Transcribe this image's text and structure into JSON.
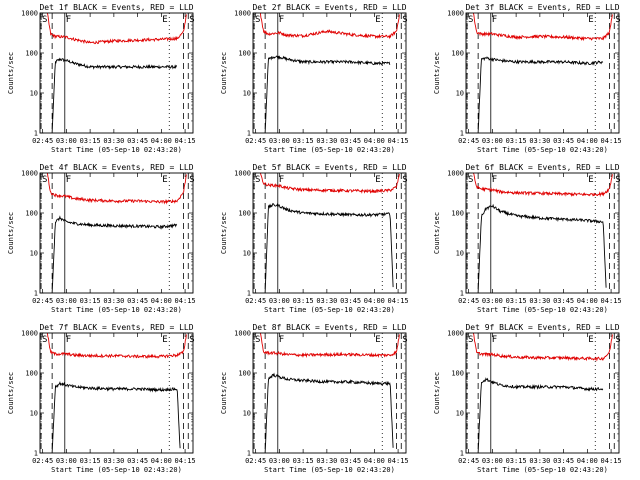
{
  "colors": {
    "events": "#000000",
    "lld": "#e00000"
  },
  "chart_data": [
    {
      "type": "line",
      "title": "Det 1f BLACK = Events, RED = LLD",
      "xlabel": "Start Time (05-Sep-10 02:43:20)",
      "ylabel": "Counts/sec",
      "ylog": true,
      "ylim": [
        1,
        1000
      ],
      "xlim": [
        "02:43:20",
        "04:20:00"
      ],
      "xticks": [
        "02:45",
        "03:00",
        "03:15",
        "03:30",
        "03:45",
        "04:00",
        "04:15"
      ],
      "yticks": [
        "1",
        "10",
        "100",
        "1000"
      ],
      "markers": [
        {
          "label": "S",
          "time": "02:44"
        },
        {
          "label": "F",
          "time": "02:59"
        },
        {
          "label": "E",
          "time": "04:05"
        },
        {
          "label": "S",
          "time": "04:17"
        }
      ],
      "series": [
        {
          "name": "Events",
          "x": [
            "02:51",
            "02:53",
            "02:56",
            "03:00",
            "03:05",
            "03:15",
            "03:30",
            "03:45",
            "04:00",
            "04:10"
          ],
          "y": [
            1,
            60,
            70,
            65,
            55,
            45,
            45,
            45,
            45,
            45
          ]
        },
        {
          "name": "LLD",
          "x": [
            "02:48",
            "02:50",
            "02:53",
            "03:00",
            "03:05",
            "03:15",
            "03:30",
            "03:45",
            "04:00",
            "04:10",
            "04:14",
            "04:16"
          ],
          "y": [
            1000,
            300,
            260,
            250,
            220,
            180,
            200,
            210,
            220,
            230,
            330,
            1000
          ]
        }
      ]
    },
    {
      "type": "line",
      "title": "Det 2f BLACK = Events, RED = LLD",
      "xlabel": "Start Time (05-Sep-10 02:43:20)",
      "ylabel": "Counts/sec",
      "ylog": true,
      "ylim": [
        1,
        1000
      ],
      "xlim": [
        "02:43:20",
        "04:20:00"
      ],
      "xticks": [
        "02:45",
        "03:00",
        "03:15",
        "03:30",
        "03:45",
        "04:00",
        "04:15"
      ],
      "yticks": [
        "1",
        "10",
        "100",
        "1000"
      ],
      "markers": [
        {
          "label": "S",
          "time": "02:44"
        },
        {
          "label": "F",
          "time": "02:59"
        },
        {
          "label": "E",
          "time": "04:05"
        },
        {
          "label": "S",
          "time": "04:17"
        }
      ],
      "series": [
        {
          "name": "Events",
          "x": [
            "02:51",
            "02:53",
            "02:56",
            "03:00",
            "03:05",
            "03:15",
            "03:30",
            "03:45",
            "04:00",
            "04:10"
          ],
          "y": [
            1,
            70,
            80,
            80,
            70,
            60,
            60,
            60,
            55,
            55
          ]
        },
        {
          "name": "LLD",
          "x": [
            "02:48",
            "02:50",
            "02:53",
            "03:00",
            "03:05",
            "03:15",
            "03:30",
            "03:45",
            "04:00",
            "04:10",
            "04:14",
            "04:16"
          ],
          "y": [
            1000,
            350,
            300,
            320,
            280,
            270,
            350,
            290,
            260,
            260,
            350,
            1000
          ]
        }
      ]
    },
    {
      "type": "line",
      "title": "Det 3f BLACK = Events, RED = LLD",
      "xlabel": "Start Time (05-Sep-10 02:43:20)",
      "ylabel": "Counts/sec",
      "ylog": true,
      "ylim": [
        1,
        1000
      ],
      "xlim": [
        "02:43:20",
        "04:20:00"
      ],
      "xticks": [
        "02:45",
        "03:00",
        "03:15",
        "03:30",
        "03:45",
        "04:00",
        "04:15"
      ],
      "yticks": [
        "1",
        "10",
        "100",
        "1000"
      ],
      "markers": [
        {
          "label": "S",
          "time": "02:44"
        },
        {
          "label": "F",
          "time": "02:59"
        },
        {
          "label": "E",
          "time": "04:05"
        },
        {
          "label": "S",
          "time": "04:17"
        }
      ],
      "series": [
        {
          "name": "Events",
          "x": [
            "02:51",
            "02:53",
            "02:56",
            "03:00",
            "03:05",
            "03:15",
            "03:30",
            "03:45",
            "04:00",
            "04:10"
          ],
          "y": [
            1,
            70,
            75,
            70,
            65,
            60,
            60,
            60,
            55,
            60
          ]
        },
        {
          "name": "LLD",
          "x": [
            "02:48",
            "02:50",
            "02:53",
            "03:00",
            "03:05",
            "03:15",
            "03:30",
            "03:45",
            "04:00",
            "04:10",
            "04:14",
            "04:16"
          ],
          "y": [
            1000,
            330,
            300,
            300,
            280,
            250,
            260,
            250,
            230,
            230,
            330,
            1000
          ]
        }
      ]
    },
    {
      "type": "line",
      "title": "Det 4f BLACK = Events, RED = LLD",
      "xlabel": "Start Time (05-Sep-10 02:43:20)",
      "ylabel": "Counts/sec",
      "ylog": true,
      "ylim": [
        1,
        1000
      ],
      "xlim": [
        "02:43:20",
        "04:20:00"
      ],
      "xticks": [
        "02:45",
        "03:00",
        "03:15",
        "03:30",
        "03:45",
        "04:00",
        "04:15"
      ],
      "yticks": [
        "1",
        "10",
        "100",
        "1000"
      ],
      "markers": [
        {
          "label": "S",
          "time": "02:44"
        },
        {
          "label": "F",
          "time": "02:59"
        },
        {
          "label": "E",
          "time": "04:05"
        },
        {
          "label": "S",
          "time": "04:17"
        }
      ],
      "series": [
        {
          "name": "Events",
          "x": [
            "02:51",
            "02:53",
            "02:56",
            "03:00",
            "03:05",
            "03:15",
            "03:30",
            "03:45",
            "04:00",
            "04:10"
          ],
          "y": [
            1,
            60,
            75,
            60,
            55,
            50,
            48,
            47,
            45,
            50
          ]
        },
        {
          "name": "LLD",
          "x": [
            "02:48",
            "02:50",
            "02:53",
            "03:00",
            "03:05",
            "03:15",
            "03:30",
            "03:45",
            "04:00",
            "04:10",
            "04:14",
            "04:16"
          ],
          "y": [
            1000,
            320,
            280,
            260,
            230,
            210,
            200,
            200,
            190,
            200,
            330,
            1000
          ]
        }
      ]
    },
    {
      "type": "line",
      "title": "Det 5f BLACK = Events, RED = LLD",
      "xlabel": "Start Time (05-Sep-10 02:43:20)",
      "ylabel": "Counts/sec",
      "ylog": true,
      "ylim": [
        1,
        1000
      ],
      "xlim": [
        "02:43:20",
        "04:20:00"
      ],
      "xticks": [
        "02:45",
        "03:00",
        "03:15",
        "03:30",
        "03:45",
        "04:00",
        "04:15"
      ],
      "yticks": [
        "1",
        "10",
        "100",
        "1000"
      ],
      "markers": [
        {
          "label": "S",
          "time": "02:44"
        },
        {
          "label": "F",
          "time": "02:59"
        },
        {
          "label": "E",
          "time": "04:05"
        },
        {
          "label": "S",
          "time": "04:17"
        }
      ],
      "series": [
        {
          "name": "Events",
          "x": [
            "02:51",
            "02:53",
            "02:56",
            "03:00",
            "03:05",
            "03:15",
            "03:30",
            "03:45",
            "04:00",
            "04:10",
            "04:12"
          ],
          "y": [
            1,
            140,
            160,
            150,
            120,
            100,
            95,
            90,
            90,
            95,
            1
          ]
        },
        {
          "name": "LLD",
          "x": [
            "02:48",
            "02:50",
            "02:53",
            "03:00",
            "03:05",
            "03:15",
            "03:30",
            "03:45",
            "04:00",
            "04:10",
            "04:14",
            "04:16"
          ],
          "y": [
            1000,
            550,
            500,
            480,
            420,
            380,
            370,
            360,
            350,
            370,
            450,
            1000
          ]
        }
      ]
    },
    {
      "type": "line",
      "title": "Det 6f BLACK = Events, RED = LLD",
      "xlabel": "Start Time (05-Sep-10 02:43:20)",
      "ylabel": "Counts/sec",
      "ylog": true,
      "ylim": [
        1,
        1000
      ],
      "xlim": [
        "02:43:20",
        "04:20:00"
      ],
      "xticks": [
        "02:45",
        "03:00",
        "03:15",
        "03:30",
        "03:45",
        "04:00",
        "04:15"
      ],
      "yticks": [
        "1",
        "10",
        "100",
        "1000"
      ],
      "markers": [
        {
          "label": "S",
          "time": "02:44"
        },
        {
          "label": "F",
          "time": "02:59"
        },
        {
          "label": "E",
          "time": "04:05"
        },
        {
          "label": "S",
          "time": "04:17"
        }
      ],
      "series": [
        {
          "name": "Events",
          "x": [
            "02:51",
            "02:53",
            "02:56",
            "03:00",
            "03:05",
            "03:15",
            "03:30",
            "03:45",
            "04:00",
            "04:10",
            "04:12"
          ],
          "y": [
            1,
            80,
            130,
            150,
            110,
            85,
            75,
            70,
            65,
            60,
            1
          ]
        },
        {
          "name": "LLD",
          "x": [
            "02:48",
            "02:50",
            "02:53",
            "03:00",
            "03:05",
            "03:15",
            "03:30",
            "03:45",
            "04:00",
            "04:10",
            "04:14",
            "04:16"
          ],
          "y": [
            1000,
            450,
            400,
            380,
            340,
            320,
            310,
            300,
            290,
            300,
            400,
            1000
          ]
        }
      ]
    },
    {
      "type": "line",
      "title": "Det 7f BLACK = Events, RED = LLD",
      "xlabel": "Start Time (05-Sep-10 02:43:20)",
      "ylabel": "Counts/sec",
      "ylog": true,
      "ylim": [
        1,
        1000
      ],
      "xlim": [
        "02:43:20",
        "04:20:00"
      ],
      "xticks": [
        "02:45",
        "03:00",
        "03:15",
        "03:30",
        "03:45",
        "04:00",
        "04:15"
      ],
      "yticks": [
        "1",
        "10",
        "100",
        "1000"
      ],
      "markers": [
        {
          "label": "S",
          "time": "02:44"
        },
        {
          "label": "F",
          "time": "02:59"
        },
        {
          "label": "E",
          "time": "04:05"
        },
        {
          "label": "S",
          "time": "04:17"
        }
      ],
      "series": [
        {
          "name": "Events",
          "x": [
            "02:51",
            "02:53",
            "02:56",
            "03:00",
            "03:05",
            "03:15",
            "03:30",
            "03:45",
            "04:00",
            "04:10",
            "04:12"
          ],
          "y": [
            1,
            45,
            55,
            50,
            45,
            42,
            40,
            40,
            38,
            40,
            1
          ]
        },
        {
          "name": "LLD",
          "x": [
            "02:48",
            "02:50",
            "02:53",
            "03:00",
            "03:05",
            "03:15",
            "03:30",
            "03:45",
            "04:00",
            "04:10",
            "04:14",
            "04:16"
          ],
          "y": [
            1000,
            330,
            300,
            300,
            280,
            270,
            270,
            260,
            260,
            280,
            330,
            1000
          ]
        }
      ]
    },
    {
      "type": "line",
      "title": "Det 8f BLACK = Events, RED = LLD",
      "xlabel": "Start Time (05-Sep-10 02:43:20)",
      "ylabel": "Counts/sec",
      "ylog": true,
      "ylim": [
        1,
        1000
      ],
      "xlim": [
        "02:43:20",
        "04:20:00"
      ],
      "xticks": [
        "02:45",
        "03:00",
        "03:15",
        "03:30",
        "03:45",
        "04:00",
        "04:15"
      ],
      "yticks": [
        "1",
        "10",
        "100",
        "1000"
      ],
      "markers": [
        {
          "label": "S",
          "time": "02:44"
        },
        {
          "label": "F",
          "time": "02:59"
        },
        {
          "label": "E",
          "time": "04:05"
        },
        {
          "label": "S",
          "time": "04:17"
        }
      ],
      "series": [
        {
          "name": "Events",
          "x": [
            "02:51",
            "02:53",
            "02:56",
            "03:00",
            "03:05",
            "03:15",
            "03:30",
            "03:45",
            "04:00",
            "04:10",
            "04:12"
          ],
          "y": [
            1,
            70,
            90,
            80,
            70,
            65,
            60,
            60,
            55,
            55,
            1
          ]
        },
        {
          "name": "LLD",
          "x": [
            "02:48",
            "02:50",
            "02:53",
            "03:00",
            "03:05",
            "03:15",
            "03:30",
            "03:45",
            "04:00",
            "04:10",
            "04:14",
            "04:16"
          ],
          "y": [
            1000,
            330,
            320,
            310,
            290,
            280,
            290,
            290,
            280,
            280,
            330,
            1000
          ]
        }
      ]
    },
    {
      "type": "line",
      "title": "Det 9f BLACK = Events, RED = LLD",
      "xlabel": "Start Time (05-Sep-10 02:43:20)",
      "ylabel": "Counts/sec",
      "ylog": true,
      "ylim": [
        1,
        1000
      ],
      "xlim": [
        "02:43:20",
        "04:20:00"
      ],
      "xticks": [
        "02:45",
        "03:00",
        "03:15",
        "03:30",
        "03:45",
        "04:00",
        "04:15"
      ],
      "yticks": [
        "1",
        "10",
        "100",
        "1000"
      ],
      "markers": [
        {
          "label": "S",
          "time": "02:44"
        },
        {
          "label": "F",
          "time": "02:59"
        },
        {
          "label": "E",
          "time": "04:05"
        },
        {
          "label": "S",
          "time": "04:17"
        }
      ],
      "series": [
        {
          "name": "Events",
          "x": [
            "02:51",
            "02:53",
            "02:56",
            "03:00",
            "03:05",
            "03:15",
            "03:30",
            "03:45",
            "04:00",
            "04:10"
          ],
          "y": [
            1,
            60,
            70,
            60,
            50,
            45,
            45,
            45,
            40,
            40
          ]
        },
        {
          "name": "LLD",
          "x": [
            "02:48",
            "02:50",
            "02:53",
            "03:00",
            "03:05",
            "03:15",
            "03:30",
            "03:45",
            "04:00",
            "04:10",
            "04:14",
            "04:16"
          ],
          "y": [
            1000,
            320,
            300,
            290,
            270,
            250,
            240,
            240,
            230,
            230,
            330,
            1000
          ]
        }
      ]
    }
  ]
}
